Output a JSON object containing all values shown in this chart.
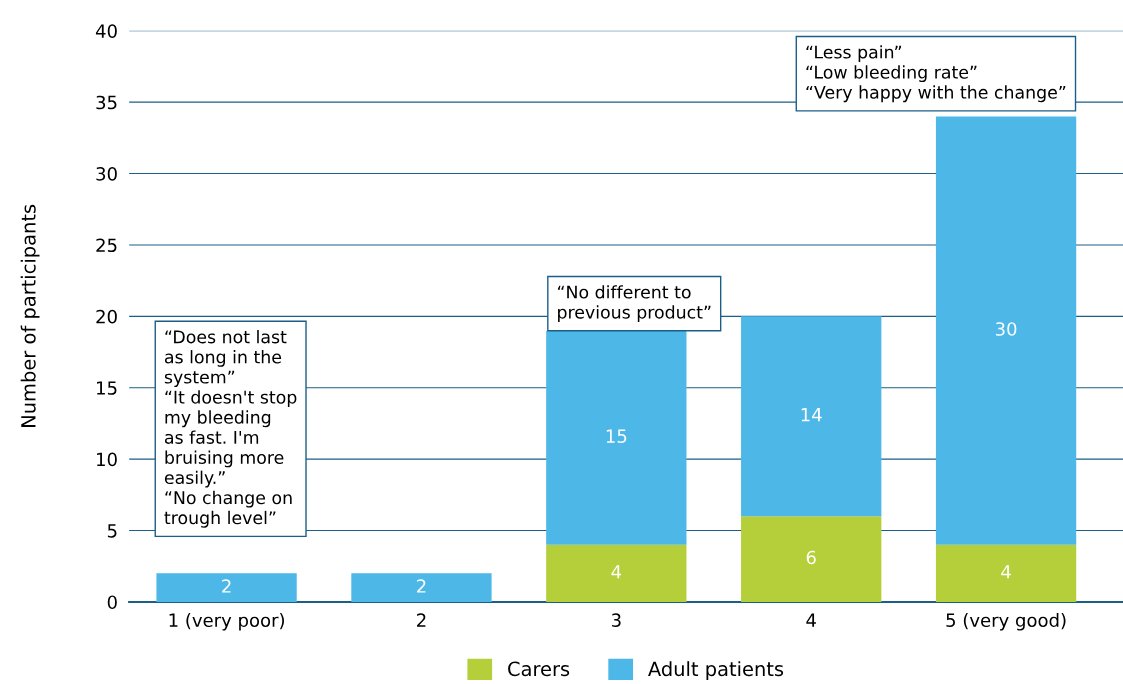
{
  "chart_data": {
    "type": "bar",
    "stacked": true,
    "ylabel": "Number of participants",
    "categories": [
      "1 (very poor)",
      "2",
      "3",
      "4",
      "5 (very good)"
    ],
    "series": [
      {
        "name": "Carers",
        "color": "#b5cf3a",
        "values": [
          0,
          0,
          4,
          6,
          4
        ],
        "value_labels": [
          null,
          null,
          "4",
          "6",
          "4"
        ]
      },
      {
        "name": "Adult patients",
        "color": "#4db8e8",
        "values": [
          2,
          2,
          15,
          14,
          30
        ],
        "value_labels": [
          "2",
          "2",
          "15",
          "14",
          "30"
        ]
      }
    ],
    "ylim": [
      0,
      40
    ],
    "yticks": [
      0,
      5,
      10,
      15,
      20,
      25,
      30,
      35,
      40
    ],
    "grid": "y",
    "legend": "bottom",
    "annotations": [
      "“Does not last\nas long in the\nsystem”\n“It doesn't stop\nmy bleeding\nas fast. I'm\nbruising more\neasily.”\n“No change on\ntrough level”",
      "“No different to\nprevious product”",
      "“Less pain”\n“Low bleeding rate”\n“Very happy with the change”"
    ]
  }
}
